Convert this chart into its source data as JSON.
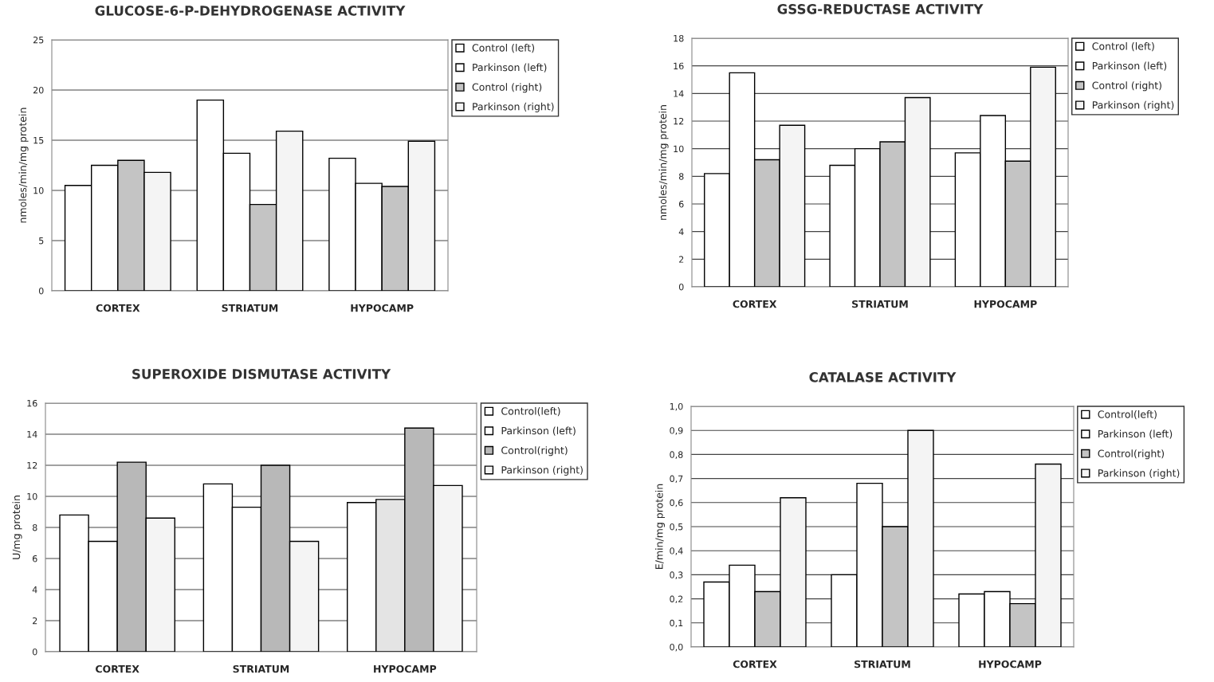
{
  "chart_data": [
    {
      "type": "bar",
      "title": "GLUCOSE-6-P-DEHYDROGENASE ACTIVITY",
      "ylabel": "nmoles/min/mg protein",
      "categories": [
        "CORTEX",
        "STRIATUM",
        "HYPOCAMP"
      ],
      "ylim": [
        0,
        25
      ],
      "yticks": [
        0,
        5,
        10,
        15,
        20,
        25
      ],
      "grid": "y",
      "legend": "right",
      "series": [
        {
          "name": "Control (left)",
          "color": "#ffffff",
          "values": [
            10.5,
            19.0,
            13.2
          ]
        },
        {
          "name": "Parkinson (left)",
          "color": "#ffffff",
          "values": [
            12.5,
            13.7,
            10.7
          ]
        },
        {
          "name": "Control (right)",
          "color": "#c4c4c4",
          "values": [
            13.0,
            8.6,
            10.4
          ]
        },
        {
          "name": "Parkinson (right)",
          "color": "#f4f4f4",
          "values": [
            11.8,
            15.9,
            14.9
          ]
        }
      ]
    },
    {
      "type": "bar",
      "title": "GSSG-REDUCTASE ACTIVITY",
      "ylabel": "nmoles/min/mg protein",
      "categories": [
        "CORTEX",
        "STRIATUM",
        "HYPOCAMP"
      ],
      "ylim": [
        0,
        18
      ],
      "yticks": [
        0,
        2,
        4,
        6,
        8,
        10,
        12,
        14,
        16,
        18
      ],
      "grid": "y",
      "legend": "right",
      "series": [
        {
          "name": "Control (left)",
          "color": "#ffffff",
          "values": [
            8.2,
            8.8,
            9.7
          ]
        },
        {
          "name": "Parkinson (left)",
          "color": "#ffffff",
          "values": [
            15.5,
            10.0,
            12.4
          ]
        },
        {
          "name": "Control (right)",
          "color": "#c4c4c4",
          "values": [
            9.2,
            10.5,
            9.1
          ]
        },
        {
          "name": "Parkinson (right)",
          "color": "#f4f4f4",
          "values": [
            11.7,
            13.7,
            15.9
          ]
        }
      ]
    },
    {
      "type": "bar",
      "title": "SUPEROXIDE DISMUTASE ACTIVITY",
      "ylabel": "U/mg protein",
      "categories": [
        "CORTEX",
        "STRIATUM",
        "HYPOCAMP"
      ],
      "ylim": [
        0,
        16
      ],
      "yticks": [
        0,
        2,
        4,
        6,
        8,
        10,
        12,
        14,
        16
      ],
      "grid": "y",
      "legend": "right",
      "series": [
        {
          "name": "Control(left)",
          "color": "#ffffff",
          "values": [
            8.8,
            10.8,
            9.6
          ]
        },
        {
          "name": "Parkinson (left)",
          "color": "#ffffff",
          "colors": [
            "#ffffff",
            "#ffffff",
            "#e4e4e4"
          ],
          "values": [
            7.1,
            9.3,
            9.8
          ]
        },
        {
          "name": "Control(right)",
          "color": "#b8b8b8",
          "values": [
            12.2,
            12.0,
            14.4
          ]
        },
        {
          "name": "Parkinson (right)",
          "color": "#f4f4f4",
          "values": [
            8.6,
            7.1,
            10.7
          ]
        }
      ]
    },
    {
      "type": "bar",
      "title": "CATALASE ACTIVITY",
      "ylabel": "E/min/mg protein",
      "categories": [
        "CORTEX",
        "STRIATUM",
        "HYPOCAMP"
      ],
      "ylim": [
        0,
        1.0
      ],
      "yticks": [
        {
          "value": 0,
          "label": "0,0"
        },
        {
          "value": 0.1,
          "label": "0,1"
        },
        {
          "value": 0.2,
          "label": "0,2"
        },
        {
          "value": 0.3,
          "label": "0,3"
        },
        {
          "value": 0.4,
          "label": "0,4"
        },
        {
          "value": 0.5,
          "label": "0,5"
        },
        {
          "value": 0.6,
          "label": "0,6"
        },
        {
          "value": 0.7,
          "label": "0,7"
        },
        {
          "value": 0.8,
          "label": "0,8"
        },
        {
          "value": 0.9,
          "label": "0,9"
        },
        {
          "value": 1.0,
          "label": "1,0"
        }
      ],
      "grid": "y",
      "legend": "right",
      "series": [
        {
          "name": "Control(left)",
          "color": "#ffffff",
          "values": [
            0.27,
            0.3,
            0.22
          ]
        },
        {
          "name": "Parkinson (left)",
          "color": "#ffffff",
          "values": [
            0.34,
            0.68,
            0.23
          ]
        },
        {
          "name": "Control(right)",
          "color": "#c4c4c4",
          "values": [
            0.23,
            0.5,
            0.18
          ]
        },
        {
          "name": "Parkinson (right)",
          "color": "#f4f4f4",
          "values": [
            0.62,
            0.9,
            0.76
          ]
        }
      ]
    }
  ]
}
